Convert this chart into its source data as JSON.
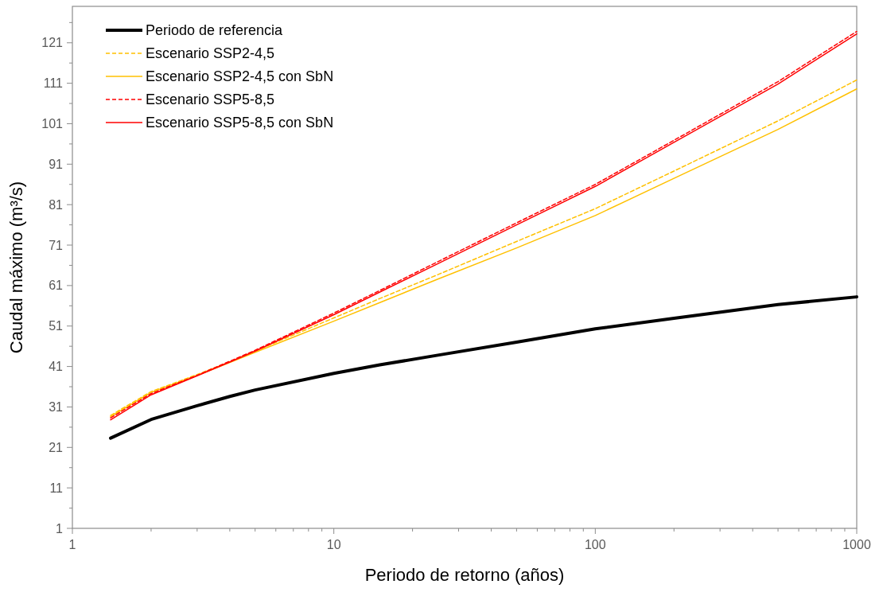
{
  "chart_data": {
    "type": "line",
    "xlabel": "Periodo de retorno (años)",
    "ylabel": "Caudal máximo (m³/s)",
    "log": "x",
    "grid": false,
    "legend": "top left",
    "x": [
      1.4,
      2,
      3,
      4,
      5,
      10,
      15,
      25,
      50,
      100,
      200,
      500,
      1000
    ],
    "xlim": [
      1,
      1000
    ],
    "xticks": [
      1,
      {
        "value": 2,
        "label": null
      },
      {
        "value": 3,
        "label": null
      },
      {
        "value": 4,
        "label": null
      },
      {
        "value": 5,
        "label": null
      },
      {
        "value": 6,
        "label": null
      },
      {
        "value": 7,
        "label": null
      },
      {
        "value": 8,
        "label": null
      },
      {
        "value": 9,
        "label": null
      },
      10,
      {
        "value": 20,
        "label": null
      },
      {
        "value": 30,
        "label": null
      },
      {
        "value": 40,
        "label": null
      },
      {
        "value": 50,
        "label": null
      },
      {
        "value": 60,
        "label": null
      },
      {
        "value": 70,
        "label": null
      },
      {
        "value": 80,
        "label": null
      },
      {
        "value": 90,
        "label": null
      },
      100,
      {
        "value": 200,
        "label": null
      },
      {
        "value": 300,
        "label": null
      },
      {
        "value": 400,
        "label": null
      },
      {
        "value": 500,
        "label": null
      },
      {
        "value": 600,
        "label": null
      },
      {
        "value": 700,
        "label": null
      },
      {
        "value": 800,
        "label": null
      },
      {
        "value": 900,
        "label": null
      },
      1000
    ],
    "ylim": [
      1,
      130
    ],
    "yticks": [
      1,
      {
        "value": 6,
        "label": null
      },
      11,
      {
        "value": 16,
        "label": null
      },
      21,
      {
        "value": 26,
        "label": null
      },
      31,
      {
        "value": 36,
        "label": null
      },
      41,
      {
        "value": 46,
        "label": null
      },
      51,
      {
        "value": 56,
        "label": null
      },
      61,
      {
        "value": 66,
        "label": null
      },
      71,
      {
        "value": 76,
        "label": null
      },
      81,
      {
        "value": 86,
        "label": null
      },
      91,
      {
        "value": 96,
        "label": null
      },
      101,
      {
        "value": 106,
        "label": null
      },
      111,
      {
        "value": 116,
        "label": null
      },
      121,
      {
        "value": 126,
        "label": null
      }
    ],
    "series": [
      {
        "name": "Periodo de referencia",
        "color": "#000000",
        "line_style": "solid",
        "values": [
          23.3,
          27.9,
          31.3,
          33.6,
          35.2,
          39.3,
          41.4,
          43.8,
          47,
          50.3,
          52.9,
          56.3,
          58.2
        ]
      },
      {
        "name": "Escenario SSP2-4,5",
        "color": "#ffc000",
        "line_style": "dashed",
        "values": [
          28.9,
          34.8,
          39,
          42.2,
          44.8,
          53,
          57.8,
          63.7,
          71.9,
          80,
          89.3,
          101.7,
          111.8
        ]
      },
      {
        "name": "Escenario SSP2-4,5 con SbN",
        "color": "#ffc000",
        "line_style": "solid",
        "values": [
          28.6,
          34.6,
          38.8,
          42,
          44.5,
          52.2,
          56.8,
          62.6,
          70.3,
          78.3,
          87.5,
          99.6,
          109.6
        ]
      },
      {
        "name": "Escenario SSP5-8,5",
        "color": "#ff0000",
        "line_style": "dashed",
        "values": [
          28.3,
          34.3,
          38.8,
          42.3,
          45,
          54.2,
          59.8,
          66.9,
          76.5,
          86,
          96.9,
          111.4,
          123.8
        ]
      },
      {
        "name": "Escenario SSP5-8,5 con SbN",
        "color": "#ff0000",
        "line_style": "solid",
        "values": [
          27.8,
          34,
          38.7,
          42.1,
          44.8,
          53.8,
          59.4,
          66.4,
          76,
          85.5,
          96.4,
          110.8,
          123.2
        ]
      }
    ]
  }
}
